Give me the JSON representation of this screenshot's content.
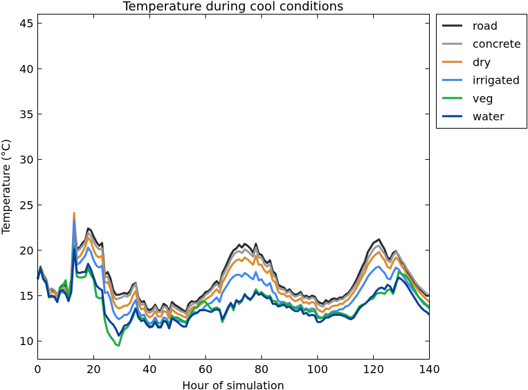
{
  "chart_data": {
    "type": "line",
    "title": "Temperature during cool conditions",
    "xlabel": "Hour of simulation",
    "ylabel": "Temperature (°C)",
    "xlim": [
      0,
      140
    ],
    "ylim": [
      8,
      46
    ],
    "x_ticks": [
      0,
      20,
      40,
      60,
      80,
      100,
      120,
      140
    ],
    "y_ticks": [
      10,
      15,
      20,
      25,
      30,
      35,
      40,
      45
    ],
    "grid": false,
    "legend_position": "outside-top-right",
    "x": [
      0,
      1,
      2,
      3,
      4,
      5,
      6,
      7,
      8,
      9,
      10,
      11,
      12,
      13,
      14,
      15,
      16,
      17,
      18,
      19,
      20,
      21,
      22,
      23,
      24,
      25,
      26,
      27,
      28,
      29,
      30,
      31,
      32,
      33,
      34,
      35,
      36,
      37,
      38,
      39,
      40,
      41,
      42,
      43,
      44,
      45,
      46,
      47,
      48,
      49,
      50,
      51,
      52,
      53,
      54,
      55,
      56,
      57,
      58,
      59,
      60,
      61,
      62,
      63,
      64,
      65,
      66,
      67,
      68,
      69,
      70,
      71,
      72,
      73,
      74,
      75,
      76,
      77,
      78,
      79,
      80,
      81,
      82,
      83,
      84,
      85,
      86,
      87,
      88,
      89,
      90,
      91,
      92,
      93,
      94,
      95,
      96,
      97,
      98,
      99,
      100,
      101,
      102,
      103,
      104,
      105,
      106,
      107,
      108,
      109,
      110,
      111,
      112,
      113,
      114,
      115,
      116,
      117,
      118,
      119,
      120,
      121,
      122,
      123,
      124,
      125,
      126,
      127,
      128,
      129,
      130,
      131,
      132,
      133,
      134,
      135,
      136,
      137,
      138,
      139,
      140
    ],
    "series": [
      {
        "name": "road",
        "color": "#2b2b2b",
        "values": [
          16.8,
          18.2,
          17.3,
          16.8,
          15.6,
          15.7,
          15.4,
          14.9,
          15.9,
          16.2,
          16.1,
          15.2,
          16.8,
          23.1,
          20.2,
          20.3,
          20.8,
          21.1,
          22.4,
          22.2,
          21.5,
          20.9,
          20.5,
          20.8,
          17.3,
          17.6,
          16.9,
          15.6,
          15.1,
          15.1,
          15.2,
          15.3,
          15.2,
          15.5,
          16.2,
          16.4,
          14.8,
          14.3,
          14.4,
          13.6,
          13.4,
          13.6,
          14.0,
          13.4,
          13.4,
          14.1,
          13.9,
          13.3,
          14.3,
          14.0,
          13.8,
          13.6,
          13.4,
          13.2,
          14.1,
          14.4,
          14.3,
          14.4,
          14.8,
          15.0,
          15.4,
          15.5,
          15.8,
          16.3,
          16.6,
          16.2,
          17.5,
          18.1,
          18.8,
          19.5,
          20.0,
          20.2,
          20.6,
          20.3,
          20.7,
          20.5,
          20.2,
          19.7,
          20.7,
          19.6,
          19.5,
          18.9,
          18.6,
          18.9,
          17.7,
          17.4,
          16.2,
          16.0,
          15.9,
          15.5,
          15.7,
          15.3,
          15.1,
          15.2,
          15.4,
          14.9,
          15.0,
          14.8,
          15.0,
          14.9,
          14.4,
          14.2,
          14.1,
          14.5,
          14.3,
          14.6,
          14.7,
          14.6,
          14.8,
          14.8,
          15.1,
          15.3,
          15.7,
          16.2,
          16.8,
          17.5,
          18.2,
          18.8,
          19.8,
          20.3,
          20.8,
          21.0,
          21.2,
          20.6,
          20.1,
          19.2,
          19.0,
          19.7,
          19.9,
          19.4,
          18.7,
          18.4,
          17.7,
          17.3,
          16.8,
          16.3,
          16.0,
          15.6,
          15.3,
          15.0,
          15.0
        ]
      },
      {
        "name": "concrete",
        "color": "#999999",
        "values": [
          16.8,
          18.1,
          17.2,
          16.7,
          15.6,
          15.8,
          15.6,
          15.1,
          15.8,
          16.0,
          15.8,
          15.3,
          16.5,
          22.9,
          19.9,
          20.1,
          20.5,
          20.9,
          21.9,
          21.6,
          20.9,
          20.4,
          20.1,
          20.2,
          17.0,
          17.1,
          16.3,
          15.0,
          14.6,
          14.7,
          14.8,
          15.0,
          14.9,
          15.1,
          15.9,
          16.3,
          14.6,
          14.0,
          14.1,
          13.3,
          13.1,
          13.3,
          13.8,
          13.2,
          13.2,
          13.8,
          13.7,
          13.0,
          14.0,
          13.7,
          13.5,
          13.3,
          13.2,
          13.0,
          13.7,
          14.0,
          14.2,
          14.1,
          14.5,
          14.7,
          15.1,
          15.3,
          15.6,
          16.0,
          16.3,
          15.9,
          17.1,
          17.7,
          18.3,
          19.0,
          19.5,
          19.8,
          19.9,
          19.7,
          20.1,
          19.9,
          19.6,
          19.3,
          20.3,
          19.2,
          19.2,
          18.5,
          18.2,
          18.5,
          17.3,
          17.0,
          15.9,
          15.7,
          15.7,
          15.3,
          15.5,
          15.1,
          14.9,
          15.0,
          15.2,
          14.7,
          14.8,
          14.6,
          14.8,
          14.7,
          14.1,
          13.9,
          13.8,
          14.2,
          14.1,
          14.3,
          14.5,
          14.4,
          14.6,
          14.6,
          14.9,
          15.1,
          15.5,
          15.9,
          16.4,
          17.0,
          17.6,
          18.2,
          19.1,
          19.6,
          20.1,
          20.4,
          20.5,
          20.0,
          19.6,
          18.9,
          18.7,
          19.4,
          19.8,
          19.5,
          18.9,
          18.5,
          17.9,
          17.5,
          17.0,
          16.5,
          16.1,
          15.8,
          15.5,
          15.2,
          15.0
        ]
      },
      {
        "name": "dry",
        "color": "#e08a2c",
        "values": [
          16.9,
          18.1,
          17.0,
          16.5,
          15.2,
          15.4,
          15.3,
          14.9,
          15.6,
          15.7,
          15.5,
          14.9,
          16.4,
          24.1,
          19.1,
          19.3,
          19.8,
          20.4,
          21.4,
          21.0,
          20.0,
          19.4,
          19.2,
          19.4,
          16.4,
          16.5,
          15.8,
          14.4,
          13.8,
          13.6,
          13.7,
          13.9,
          13.9,
          14.2,
          15.0,
          15.5,
          14.1,
          13.5,
          13.6,
          12.9,
          12.6,
          12.8,
          13.3,
          12.7,
          12.7,
          13.3,
          13.2,
          12.5,
          13.5,
          13.2,
          13.0,
          12.9,
          12.7,
          12.6,
          13.2,
          13.6,
          13.8,
          13.7,
          14.0,
          14.2,
          14.6,
          14.8,
          15.0,
          15.4,
          15.7,
          15.3,
          16.4,
          17.0,
          17.6,
          18.2,
          18.6,
          18.9,
          19.0,
          18.8,
          19.2,
          19.0,
          18.7,
          18.4,
          19.4,
          18.4,
          18.4,
          17.8,
          17.5,
          17.8,
          16.7,
          16.4,
          15.4,
          15.2,
          15.2,
          14.9,
          15.0,
          14.6,
          14.4,
          14.5,
          14.7,
          14.2,
          14.3,
          14.1,
          14.3,
          14.2,
          13.5,
          13.3,
          13.2,
          13.6,
          13.5,
          13.8,
          13.9,
          13.9,
          14.1,
          14.1,
          14.4,
          14.6,
          15.0,
          15.4,
          15.9,
          16.5,
          17.1,
          17.6,
          18.4,
          18.9,
          19.3,
          19.6,
          19.8,
          19.3,
          18.9,
          18.2,
          18.0,
          18.7,
          19.2,
          18.9,
          18.3,
          17.9,
          17.3,
          16.9,
          16.4,
          16.0,
          15.6,
          15.2,
          14.9,
          14.6,
          14.3
        ]
      },
      {
        "name": "irrigated",
        "color": "#4488ee",
        "values": [
          16.8,
          18.0,
          16.8,
          16.3,
          14.9,
          15.0,
          14.9,
          14.4,
          15.3,
          15.4,
          15.2,
          14.5,
          16.1,
          23.3,
          18.4,
          18.6,
          19.0,
          19.4,
          20.3,
          19.8,
          18.9,
          18.3,
          18.1,
          18.3,
          15.3,
          15.4,
          14.6,
          13.3,
          12.7,
          12.4,
          12.6,
          12.9,
          12.9,
          13.2,
          14.0,
          14.5,
          13.3,
          12.8,
          12.9,
          12.2,
          11.9,
          12.1,
          12.6,
          12.0,
          12.0,
          12.6,
          12.5,
          11.8,
          12.8,
          12.5,
          12.3,
          12.2,
          12.1,
          12.0,
          12.6,
          13.0,
          13.2,
          13.1,
          13.4,
          13.5,
          13.9,
          14.1,
          14.2,
          14.5,
          14.8,
          14.3,
          15.3,
          15.8,
          16.3,
          16.8,
          17.1,
          17.3,
          17.3,
          17.1,
          17.5,
          17.3,
          17.0,
          16.8,
          17.6,
          16.7,
          16.8,
          16.3,
          16.1,
          16.4,
          15.4,
          15.2,
          14.4,
          14.3,
          14.3,
          14.1,
          14.2,
          13.8,
          13.7,
          13.8,
          14.0,
          13.5,
          13.6,
          13.4,
          13.6,
          13.5,
          12.8,
          12.6,
          12.6,
          13.0,
          12.9,
          13.2,
          13.3,
          13.3,
          13.5,
          13.5,
          13.8,
          13.9,
          14.2,
          14.6,
          15.0,
          15.5,
          16.0,
          16.5,
          17.1,
          17.5,
          17.8,
          18.1,
          18.2,
          17.8,
          17.5,
          16.9,
          16.8,
          17.5,
          18.1,
          17.9,
          17.4,
          17.0,
          16.5,
          16.1,
          15.7,
          15.3,
          14.9,
          14.6,
          14.3,
          14.0,
          13.8
        ]
      },
      {
        "name": "veg",
        "color": "#16b03a",
        "values": [
          16.9,
          18.1,
          16.9,
          16.6,
          14.8,
          14.9,
          14.8,
          14.3,
          15.8,
          16.1,
          16.7,
          14.6,
          16.3,
          20.5,
          17.1,
          17.0,
          17.0,
          17.1,
          18.0,
          17.3,
          16.8,
          14.9,
          14.7,
          14.8,
          12.3,
          11.0,
          10.5,
          10.1,
          9.6,
          9.5,
          10.6,
          11.3,
          11.5,
          12.0,
          12.6,
          13.6,
          12.8,
          12.5,
          12.5,
          12.0,
          11.6,
          11.7,
          12.2,
          11.7,
          11.6,
          12.3,
          12.2,
          11.6,
          12.7,
          12.6,
          12.6,
          12.4,
          12.2,
          12.1,
          12.6,
          13.2,
          13.6,
          13.7,
          14.2,
          14.4,
          14.3,
          13.9,
          13.5,
          13.6,
          13.7,
          13.5,
          12.1,
          12.8,
          13.5,
          14.1,
          13.4,
          14.5,
          14.1,
          14.4,
          15.2,
          14.7,
          14.5,
          15.0,
          15.7,
          15.2,
          15.4,
          15.1,
          14.9,
          15.0,
          14.4,
          14.4,
          14.0,
          14.1,
          14.2,
          13.9,
          14.1,
          13.7,
          13.6,
          13.6,
          13.9,
          13.3,
          13.5,
          13.2,
          13.3,
          13.3,
          12.6,
          12.5,
          12.6,
          12.9,
          12.8,
          13.0,
          13.1,
          13.1,
          13.1,
          13.0,
          12.9,
          12.7,
          12.6,
          12.8,
          13.3,
          13.8,
          14.0,
          14.1,
          14.4,
          14.6,
          14.7,
          15.2,
          15.3,
          15.3,
          15.2,
          15.6,
          15.7,
          15.2,
          16.1,
          17.6,
          17.4,
          17.3,
          17.0,
          16.6,
          16.0,
          15.5,
          14.9,
          14.5,
          14.1,
          13.9,
          13.6
        ]
      },
      {
        "name": "water",
        "color": "#0a3e9c",
        "values": [
          16.8,
          18.0,
          16.8,
          16.5,
          14.9,
          15.0,
          14.9,
          14.3,
          15.5,
          15.6,
          15.2,
          14.4,
          15.4,
          20.1,
          17.6,
          17.5,
          17.6,
          17.6,
          18.5,
          17.9,
          17.0,
          16.1,
          15.8,
          15.6,
          13.0,
          12.5,
          12.1,
          11.8,
          11.3,
          10.6,
          11.1,
          11.7,
          11.8,
          12.1,
          12.9,
          13.6,
          12.6,
          12.2,
          12.3,
          11.8,
          11.5,
          11.6,
          12.1,
          11.5,
          11.5,
          12.2,
          12.1,
          11.4,
          12.5,
          12.3,
          12.1,
          11.8,
          11.6,
          11.6,
          12.4,
          12.8,
          13.0,
          13.1,
          13.4,
          13.4,
          13.4,
          13.3,
          13.2,
          13.4,
          13.5,
          13.4,
          12.4,
          13.0,
          13.7,
          14.2,
          13.7,
          14.5,
          14.3,
          14.5,
          15.1,
          14.8,
          14.6,
          14.9,
          15.4,
          15.1,
          15.2,
          14.9,
          14.7,
          14.8,
          14.1,
          14.1,
          13.8,
          13.9,
          14.0,
          13.7,
          13.8,
          13.5,
          13.3,
          13.3,
          13.6,
          13.0,
          13.1,
          12.8,
          12.9,
          12.8,
          12.1,
          12.1,
          12.3,
          12.6,
          12.6,
          12.8,
          12.9,
          12.9,
          12.9,
          12.8,
          12.7,
          12.5,
          12.4,
          12.6,
          13.1,
          13.6,
          13.9,
          14.1,
          14.4,
          14.8,
          15.0,
          15.5,
          15.8,
          15.9,
          15.7,
          16.2,
          16.0,
          15.4,
          16.4,
          17.0,
          16.8,
          16.5,
          16.1,
          15.6,
          15.1,
          14.6,
          14.1,
          13.7,
          13.4,
          13.2,
          12.9
        ]
      }
    ]
  }
}
